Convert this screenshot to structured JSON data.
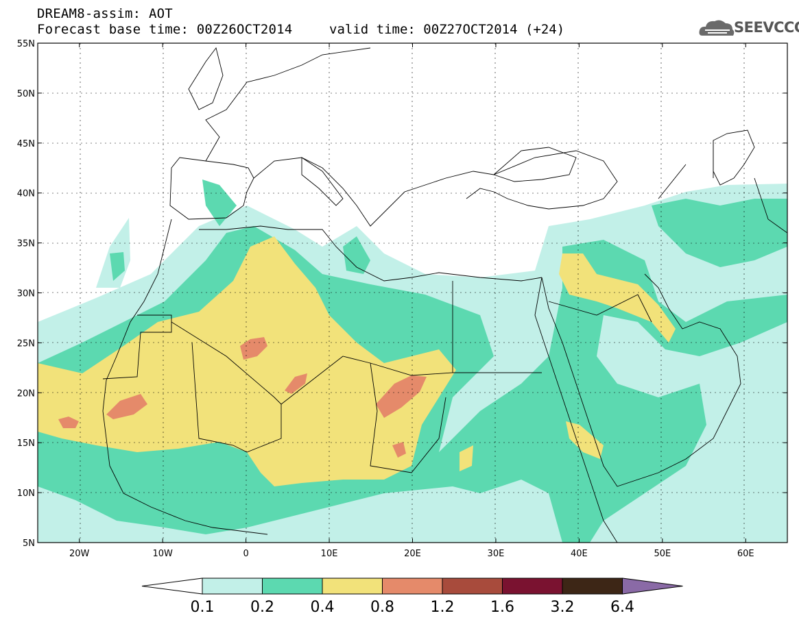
{
  "header": {
    "title_line_1": "DREAM8-assim: AOT",
    "title_line_2": "Forecast base time: 00Z26OCT2014",
    "valid_time": "valid time: 00Z27OCT2014 (+24)",
    "logo_text": "SEEVCCC",
    "logo_icon": "cloud-icon"
  },
  "chart_data": {
    "type": "heatmap",
    "variable": "AOT",
    "lon_range": [
      -25,
      65
    ],
    "lat_range": [
      5,
      55
    ],
    "x_ticks": [
      "20W",
      "10W",
      "0",
      "10E",
      "20E",
      "30E",
      "40E",
      "50E",
      "60E"
    ],
    "y_ticks": [
      "5N",
      "10N",
      "15N",
      "20N",
      "25N",
      "30N",
      "35N",
      "40N",
      "45N",
      "50N",
      "55N"
    ],
    "grid": true,
    "colorbar": {
      "levels": [
        "0.1",
        "0.2",
        "0.4",
        "0.8",
        "1.2",
        "1.6",
        "3.2",
        "6.4"
      ],
      "colors": [
        "#c2f0e8",
        "#5cd9b0",
        "#f2e27a",
        "#e58a6a",
        "#a84b3c",
        "#7a1230",
        "#3d2616",
        "#8a6aa6"
      ],
      "extend": "both",
      "placement": "bottom"
    }
  }
}
